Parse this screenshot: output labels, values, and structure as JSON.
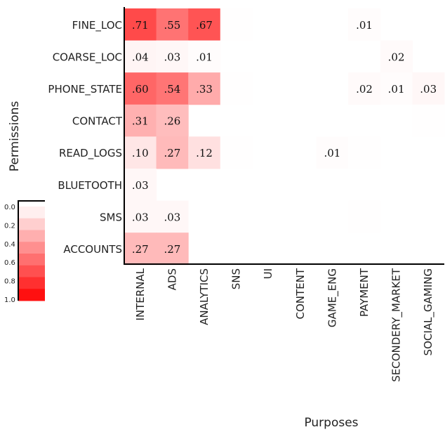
{
  "chart_data": {
    "type": "heatmap",
    "xlabel": "Purposes",
    "ylabel": "Permissions",
    "rows": [
      "FINE_LOC",
      "COARSE_LOC",
      "PHONE_STATE",
      "CONTACT",
      "READ_LOGS",
      "BLUETOOTH",
      "SMS",
      "ACCOUNTS"
    ],
    "columns": [
      "INTERNAL",
      "ADS",
      "ANALYTICS",
      "SNS",
      "UI",
      "CONTENT",
      "GAME_ENG",
      "PAYMENT",
      "SECONDERY_MARKET",
      "SOCIAL_GAMING"
    ],
    "values": [
      [
        0.71,
        0.55,
        0.67,
        0.005,
        0,
        0,
        0,
        0.01,
        0,
        0
      ],
      [
        0.04,
        0.03,
        0.01,
        0,
        0,
        0,
        0,
        0,
        0.02,
        0
      ],
      [
        0.6,
        0.54,
        0.33,
        0.005,
        0,
        0,
        0,
        0.02,
        0.01,
        0.03
      ],
      [
        0.31,
        0.26,
        0,
        0,
        0,
        0,
        0,
        0,
        0,
        0.005
      ],
      [
        0.1,
        0.27,
        0.12,
        0.003,
        0,
        0,
        0.01,
        0.003,
        0,
        0
      ],
      [
        0.03,
        0,
        0,
        0,
        0,
        0,
        0,
        0,
        0,
        0
      ],
      [
        0.03,
        0.03,
        0,
        0,
        0,
        0,
        0,
        0.003,
        0,
        0
      ],
      [
        0.27,
        0.27,
        0,
        0,
        0,
        0,
        0,
        0,
        0,
        0
      ]
    ],
    "labels": [
      [
        ".71",
        ".55",
        ".67",
        "",
        "",
        "",
        "",
        ".01",
        "",
        ""
      ],
      [
        ".04",
        ".03",
        ".01",
        "",
        "",
        "",
        "",
        "",
        ".02",
        ""
      ],
      [
        ".60",
        ".54",
        ".33",
        "",
        "",
        "",
        "",
        ".02",
        ".01",
        ".03"
      ],
      [
        ".31",
        ".26",
        "",
        "",
        "",
        "",
        "",
        "",
        "",
        ""
      ],
      [
        ".10",
        ".27",
        ".12",
        "",
        "",
        "",
        ".01",
        "",
        "",
        ""
      ],
      [
        ".03",
        "",
        "",
        "",
        "",
        "",
        "",
        "",
        "",
        ""
      ],
      [
        ".03",
        ".03",
        "",
        "",
        "",
        "",
        "",
        "",
        "",
        ""
      ],
      [
        ".27",
        ".27",
        "",
        "",
        "",
        "",
        "",
        "",
        "",
        ""
      ]
    ],
    "colorscale": {
      "min": 0.0,
      "max": 1.0,
      "low_color": "#ffffff",
      "high_color": "#ff0000",
      "ticks": [
        "0.0",
        "0.2",
        "0.4",
        "0.6",
        "0.8",
        "1.0"
      ]
    }
  }
}
